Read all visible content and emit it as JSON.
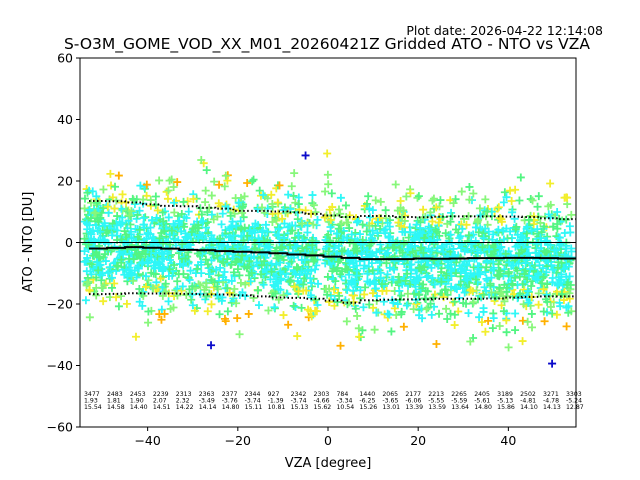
{
  "plot_date": "Plot date: 2026-04-22 12:14:08",
  "chart_data": {
    "type": "scatter",
    "title": "S-O3M_GOME_VOD_XX_M01_20260421Z Gridded ATO - NTO vs VZA",
    "xlabel": "VZA [degree]",
    "ylabel": "ATO - NTO [DU]",
    "xlim": [
      -55,
      55
    ],
    "ylim": [
      -60,
      60
    ],
    "xticks": [
      -40,
      -20,
      0,
      20,
      40
    ],
    "yticks": [
      -60,
      -40,
      -20,
      0,
      20,
      40,
      60
    ],
    "grid": false,
    "legend": "none",
    "zero_line": 0,
    "bin_centers": [
      -51,
      -47,
      -43,
      -39,
      -35,
      -31,
      -27,
      -23,
      -19,
      -15,
      -11,
      -7,
      -3,
      1,
      5,
      9,
      13,
      17,
      21,
      25,
      29,
      33,
      37,
      41,
      45,
      49,
      53
    ],
    "series": [
      {
        "name": "mean",
        "style": "solid",
        "values": [
          -1.95,
          -1.76,
          -1.5,
          -1.7,
          -2.0,
          -2.4,
          -2.5,
          -2.8,
          -3.0,
          -3.2,
          -3.5,
          -3.9,
          -4.2,
          -4.6,
          -5.0,
          -5.4,
          -5.4,
          -5.4,
          -5.2,
          -5.3,
          -5.2,
          -5.1,
          -5.1,
          -5.0,
          -5.0,
          -5.1,
          -5.2
        ]
      },
      {
        "name": "mean + std",
        "style": "dotted",
        "values": [
          13.5,
          13.4,
          13.0,
          12.4,
          11.9,
          11.8,
          11.3,
          11.0,
          10.3,
          10.3,
          10.1,
          9.8,
          9.3,
          8.8,
          8.3,
          8.6,
          8.6,
          8.3,
          8.2,
          8.4,
          8.5,
          8.5,
          8.5,
          8.4,
          8.3,
          7.9,
          7.6
        ]
      },
      {
        "name": "mean - std",
        "style": "dotted",
        "values": [
          -16.8,
          -16.7,
          -16.5,
          -16.6,
          -16.6,
          -16.7,
          -16.9,
          -16.9,
          -17.2,
          -17.5,
          -17.9,
          -18.0,
          -18.3,
          -18.9,
          -19.6,
          -18.8,
          -18.6,
          -18.5,
          -18.5,
          -18.3,
          -18.3,
          -18.3,
          -18.2,
          -17.9,
          -17.7,
          -17.5,
          -17.5
        ]
      }
    ],
    "scatter_colors": [
      "#2ef7f7",
      "#52f582",
      "#87f77a",
      "#f2ee2c",
      "#ffb000",
      "#009ff5",
      "#0a0aca"
    ],
    "bin_stats": [
      {
        "n": "3477",
        "mean": "1.93",
        "std": "15.54"
      },
      {
        "n": "2483",
        "mean": "1.81",
        "std": "14.58"
      },
      {
        "n": "2453",
        "mean": "1.90",
        "std": "14.40"
      },
      {
        "n": "2239",
        "mean": "2.07",
        "std": "14.51"
      },
      {
        "n": "2313",
        "mean": "2.32",
        "std": "14.22"
      },
      {
        "n": "2363",
        "mean": "-3.49",
        "std": "14.14"
      },
      {
        "n": "2377",
        "mean": "-3.76",
        "std": "14.80"
      },
      {
        "n": "2344",
        "mean": "-3.74",
        "std": "15.11"
      },
      {
        "n": "927",
        "mean": "-1.39",
        "std": "10.81"
      },
      {
        "n": "2342",
        "mean": "-3.74",
        "std": "15.13"
      },
      {
        "n": "2303",
        "mean": "-4.66",
        "std": "15.62"
      },
      {
        "n": "784",
        "mean": "-3.34",
        "std": "10.54"
      },
      {
        "n": "1440",
        "mean": "-6.25",
        "std": "15.26"
      },
      {
        "n": "2065",
        "mean": "-3.65",
        "std": "13.01"
      },
      {
        "n": "2177",
        "mean": "-6.06",
        "std": "13.39"
      },
      {
        "n": "2213",
        "mean": "-5.55",
        "std": "13.59"
      },
      {
        "n": "2265",
        "mean": "-5.59",
        "std": "13.64"
      },
      {
        "n": "2405",
        "mean": "-5.61",
        "std": "14.80"
      },
      {
        "n": "3189",
        "mean": "-5.13",
        "std": "15.86"
      },
      {
        "n": "2502",
        "mean": "-4.81",
        "std": "14.10"
      },
      {
        "n": "3271",
        "mean": "-4.78",
        "std": "14.13"
      },
      {
        "n": "3303",
        "mean": "-5.24",
        "std": "12.87"
      }
    ]
  }
}
